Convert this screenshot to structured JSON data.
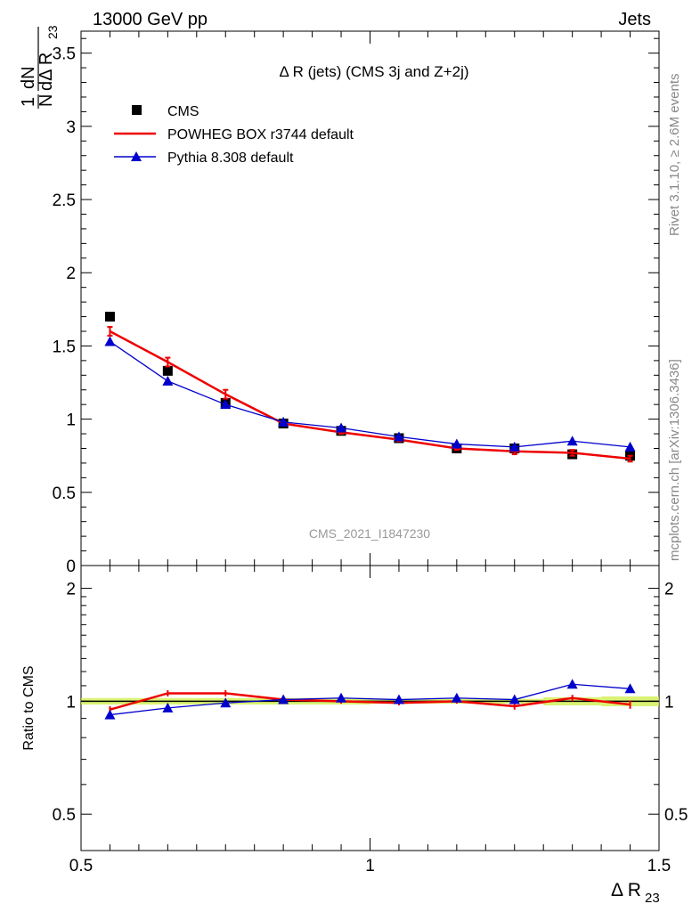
{
  "header": {
    "left": "13000 GeV pp",
    "right": "Jets"
  },
  "side_labels": {
    "rivet": "Rivet 3.1.10, ≥ 2.6M events",
    "mcplots": "mcplots.cern.ch [arXiv:1306.3436]"
  },
  "chart_data": [
    {
      "type": "line",
      "title": "Δ R (jets) (CMS 3j and Z+2j)",
      "ylabel": "1/N dN/dΔ R23",
      "ylim": [
        0,
        3.65
      ],
      "y_ticks": [
        {
          "value": 0,
          "label": "0"
        },
        {
          "value": 0.5,
          "label": "0.5"
        },
        {
          "value": 1,
          "label": "1"
        },
        {
          "value": 1.5,
          "label": "1.5"
        },
        {
          "value": 2,
          "label": "2"
        },
        {
          "value": 2.5,
          "label": "2.5"
        },
        {
          "value": 3,
          "label": "3"
        },
        {
          "value": 3.5,
          "label": "3.5"
        }
      ],
      "xlim": [
        0.5,
        1.5
      ],
      "watermark": "CMS_2021_I1847230",
      "legend_placement": "top-left",
      "x": [
        0.55,
        0.65,
        0.75,
        0.85,
        0.95,
        1.05,
        1.15,
        1.25,
        1.35,
        1.45
      ],
      "series": [
        {
          "name": "CMS",
          "color": "#000000",
          "marker": "square",
          "values": [
            1.7,
            1.33,
            1.11,
            0.97,
            0.92,
            0.87,
            0.8,
            0.8,
            0.76,
            0.75
          ]
        },
        {
          "name": "POWHEG BOX r3744 default",
          "color": "#ee0000",
          "marker": "none",
          "values": [
            1.6,
            1.39,
            1.17,
            0.97,
            0.91,
            0.86,
            0.8,
            0.78,
            0.77,
            0.73
          ],
          "errors": [
            0.03,
            0.03,
            0.03,
            0.01,
            0.01,
            0.01,
            0.01,
            0.02,
            0.02,
            0.02
          ]
        },
        {
          "name": "Pythia 8.308 default",
          "color": "#0000cc",
          "marker": "triangle",
          "values": [
            1.53,
            1.26,
            1.1,
            0.98,
            0.94,
            0.88,
            0.83,
            0.81,
            0.85,
            0.81
          ]
        }
      ]
    },
    {
      "type": "line",
      "ylabel": "Ratio to CMS",
      "ylim": [
        0.4,
        2.3
      ],
      "y_scale": "log",
      "y_ticks": [
        {
          "value": 0.5,
          "label": "0.5"
        },
        {
          "value": 1,
          "label": "1"
        },
        {
          "value": 2,
          "label": "2"
        }
      ],
      "xlim": [
        0.5,
        1.5
      ],
      "x_ticks": [
        {
          "value": 0.5,
          "label": "0.5"
        },
        {
          "value": 1,
          "label": "1"
        },
        {
          "value": 1.5,
          "label": "1.5"
        }
      ],
      "xlabel": "Δ R23",
      "band_color": "#ccee44",
      "x": [
        0.55,
        0.65,
        0.75,
        0.85,
        0.95,
        1.05,
        1.15,
        1.25,
        1.35,
        1.45
      ],
      "series": [
        {
          "name": "POWHEG BOX r3744 default",
          "color": "#ee0000",
          "values": [
            0.95,
            1.05,
            1.05,
            1.01,
            1.0,
            0.99,
            1.0,
            0.97,
            1.02,
            0.98
          ],
          "errors": [
            0.02,
            0.02,
            0.02,
            0.015,
            0.015,
            0.015,
            0.015,
            0.02,
            0.02,
            0.025
          ]
        },
        {
          "name": "Pythia 8.308 default",
          "color": "#0000cc",
          "values": [
            0.92,
            0.96,
            0.99,
            1.01,
            1.02,
            1.01,
            1.02,
            1.01,
            1.11,
            1.08
          ]
        }
      ]
    }
  ]
}
